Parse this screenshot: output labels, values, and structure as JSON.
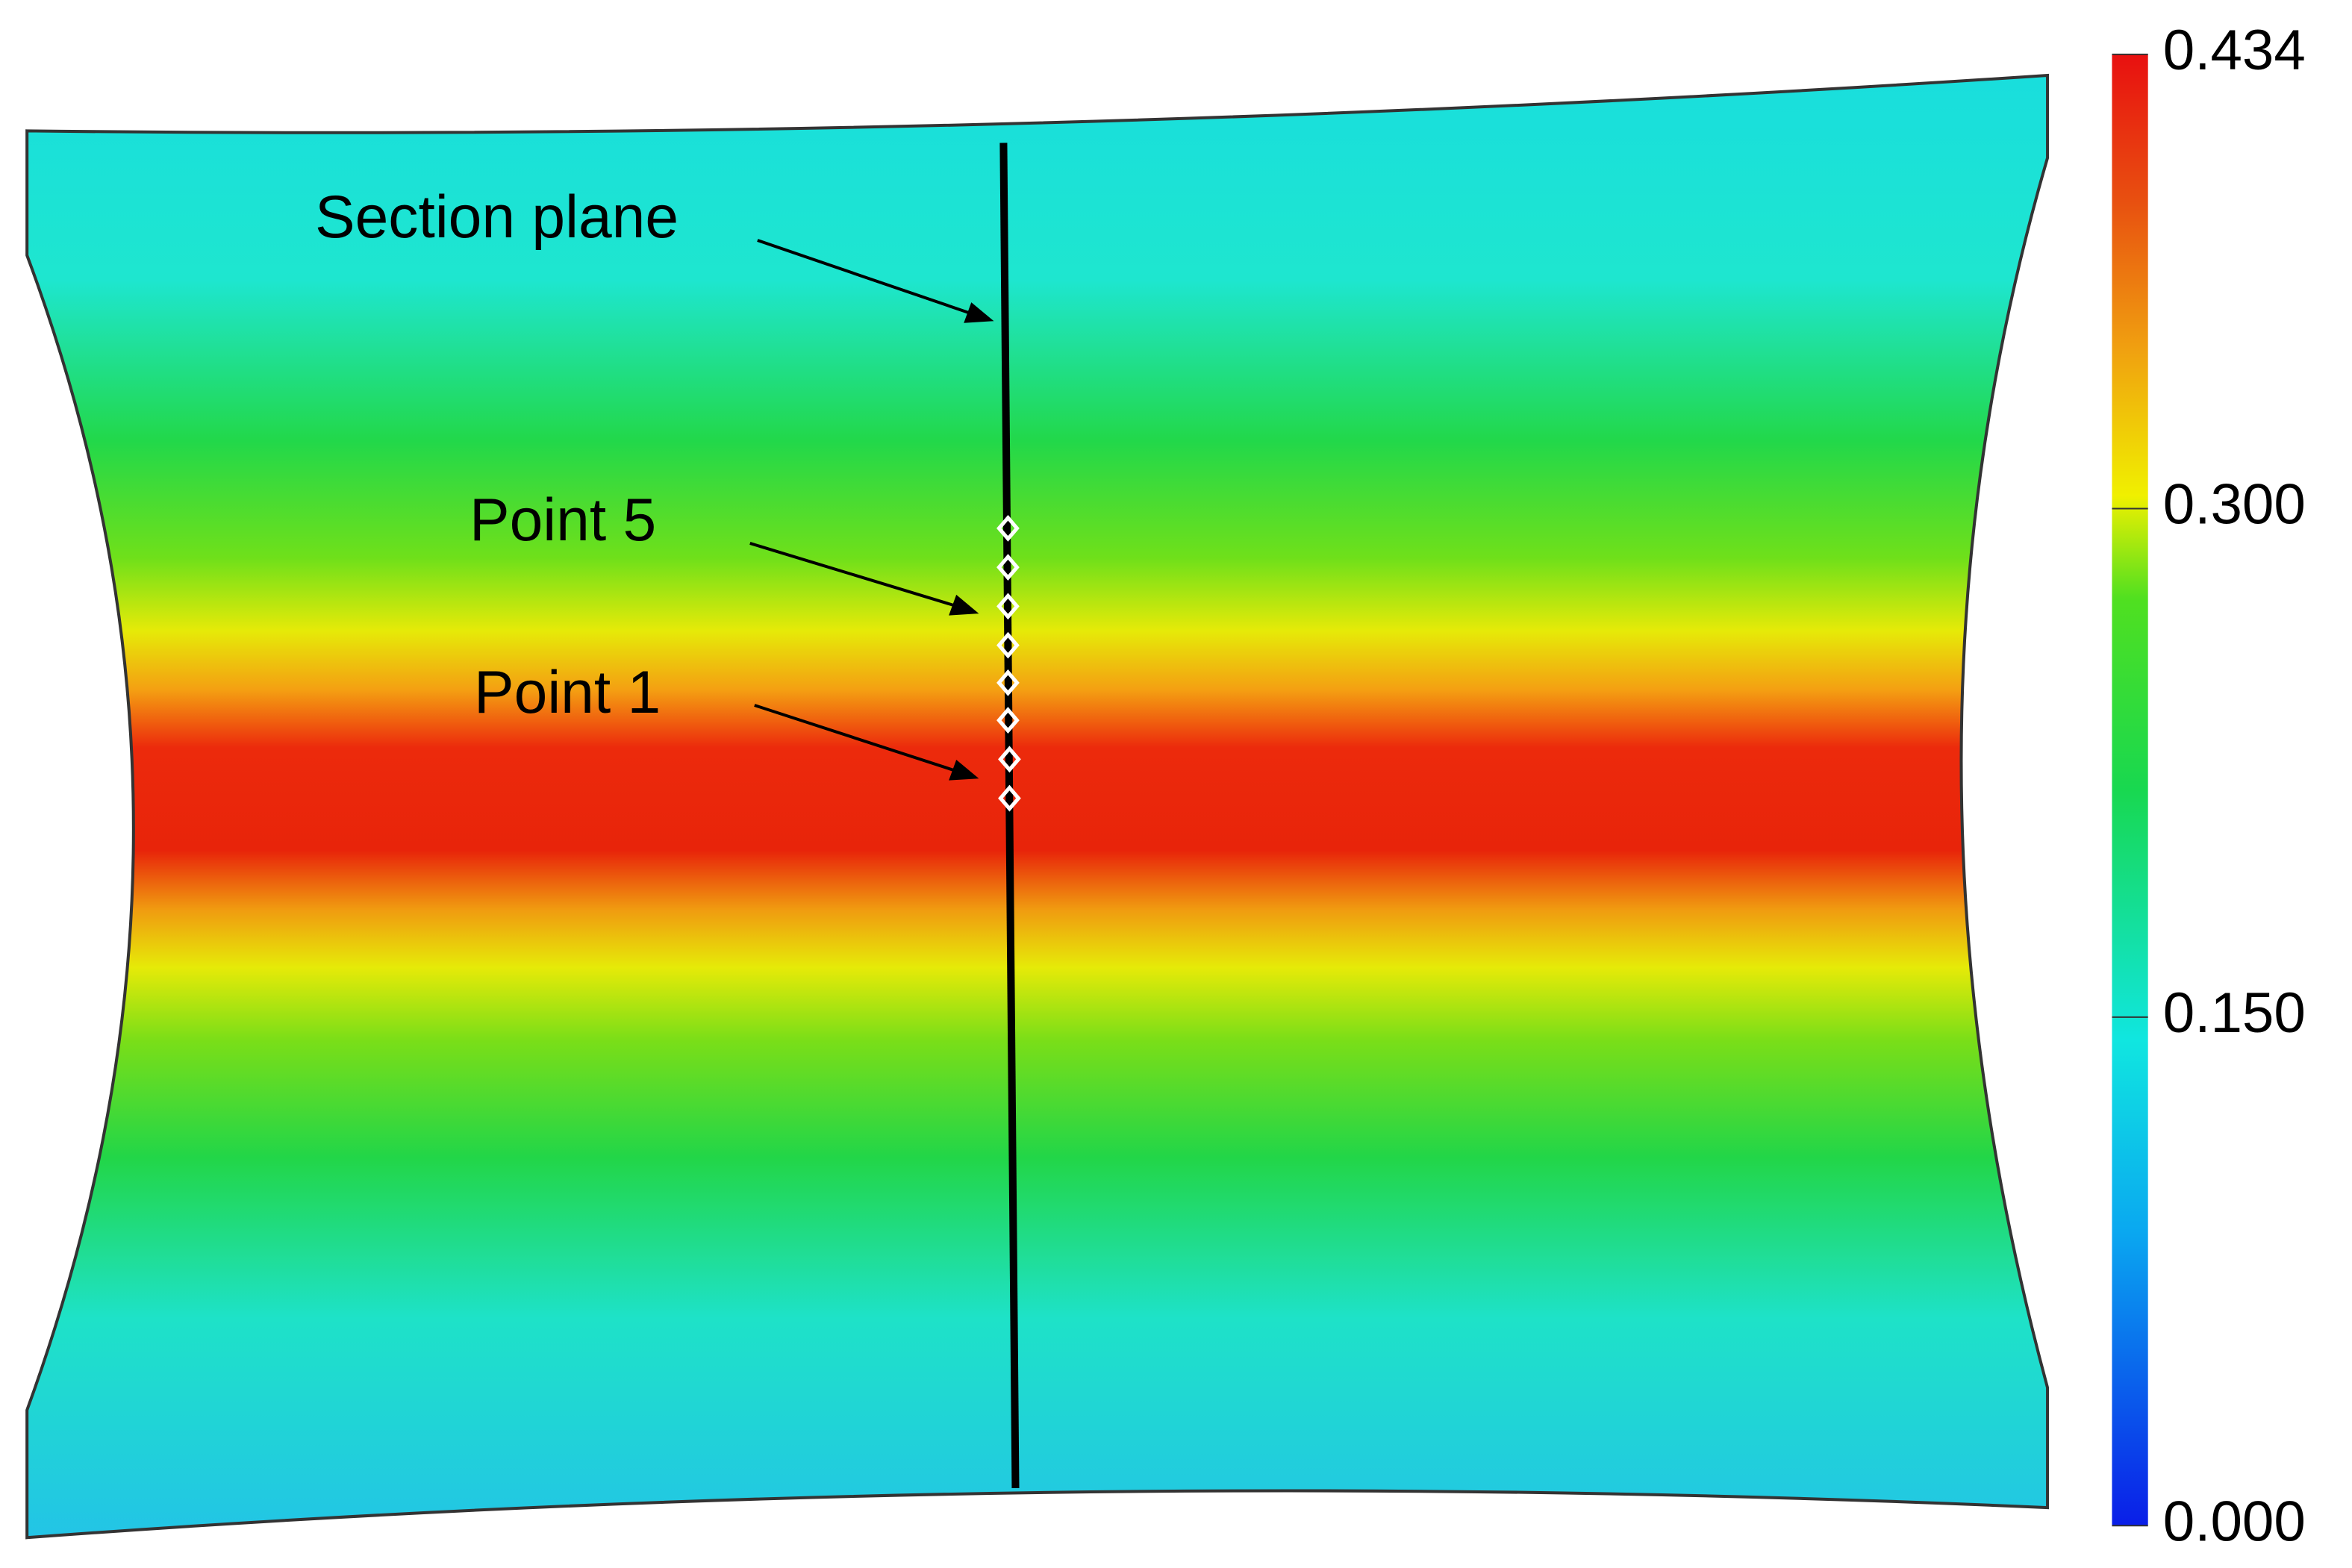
{
  "colorbar": {
    "range": [
      0,
      0.434
    ],
    "ticks": [
      {
        "value": 0,
        "label": "0.000"
      },
      {
        "value": 0.15,
        "label": "0.150"
      },
      {
        "value": 0.3,
        "label": "0.300"
      },
      {
        "value": 0.434,
        "label": "0.434"
      }
    ]
  },
  "annotations": {
    "section_plane": "Section plane",
    "point_5": "Point 5",
    "point_1": "Point 1"
  }
}
